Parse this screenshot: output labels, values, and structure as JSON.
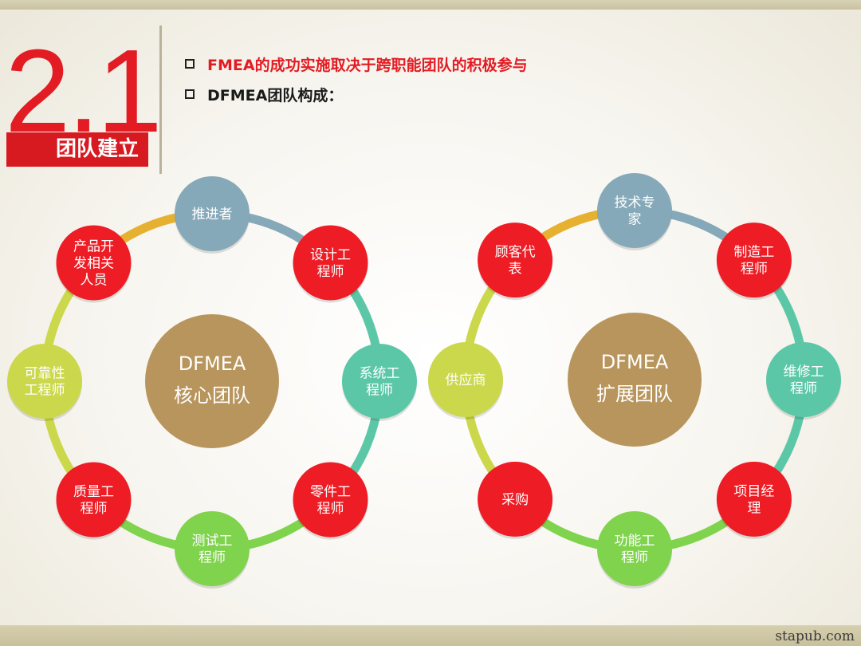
{
  "header": {
    "section_number": "2.1",
    "section_title": "团队建立",
    "bullets": [
      "FMEA的成功实施取决于跨职能团队的积极参与",
      "DFMEA团队构成："
    ]
  },
  "colors": {
    "red": "#ee1c24",
    "blue_gray": "#86a9b9",
    "teal": "#5cc7a7",
    "green": "#7fd34d",
    "yellow_green": "#cbd84b",
    "gold": "#e6b030",
    "center_brown": "#b8955c"
  },
  "diagrams": [
    {
      "center": [
        "DFMEA",
        "核心团队"
      ],
      "nodes": [
        {
          "lines": [
            "推进者"
          ],
          "color": "blue_gray"
        },
        {
          "lines": [
            "设计工",
            "程师"
          ],
          "color": "red"
        },
        {
          "lines": [
            "系统工",
            "程师"
          ],
          "color": "teal"
        },
        {
          "lines": [
            "零件工",
            "程师"
          ],
          "color": "red"
        },
        {
          "lines": [
            "测试工",
            "程师"
          ],
          "color": "green"
        },
        {
          "lines": [
            "质量工",
            "程师"
          ],
          "color": "red"
        },
        {
          "lines": [
            "可靠性",
            "工程师"
          ],
          "color": "yellow_green"
        },
        {
          "lines": [
            "产品开",
            "发相关",
            "人员"
          ],
          "color": "red"
        }
      ],
      "arcs": [
        "blue_gray",
        "teal",
        "teal",
        "green",
        "green",
        "yellow_green",
        "yellow_green",
        "gold"
      ]
    },
    {
      "center": [
        "DFMEA",
        "扩展团队"
      ],
      "nodes": [
        {
          "lines": [
            "技术专",
            "家"
          ],
          "color": "blue_gray"
        },
        {
          "lines": [
            "制造工",
            "程师"
          ],
          "color": "red"
        },
        {
          "lines": [
            "维修工",
            "程师"
          ],
          "color": "teal"
        },
        {
          "lines": [
            "项目经",
            "理"
          ],
          "color": "red"
        },
        {
          "lines": [
            "功能工",
            "程师"
          ],
          "color": "green"
        },
        {
          "lines": [
            "采购"
          ],
          "color": "red"
        },
        {
          "lines": [
            "供应商"
          ],
          "color": "yellow_green"
        },
        {
          "lines": [
            "顾客代",
            "表"
          ],
          "color": "red"
        }
      ],
      "arcs": [
        "blue_gray",
        "teal",
        "teal",
        "green",
        "green",
        "yellow_green",
        "yellow_green",
        "gold"
      ]
    }
  ],
  "footer": {
    "watermark": "stapub.com"
  }
}
